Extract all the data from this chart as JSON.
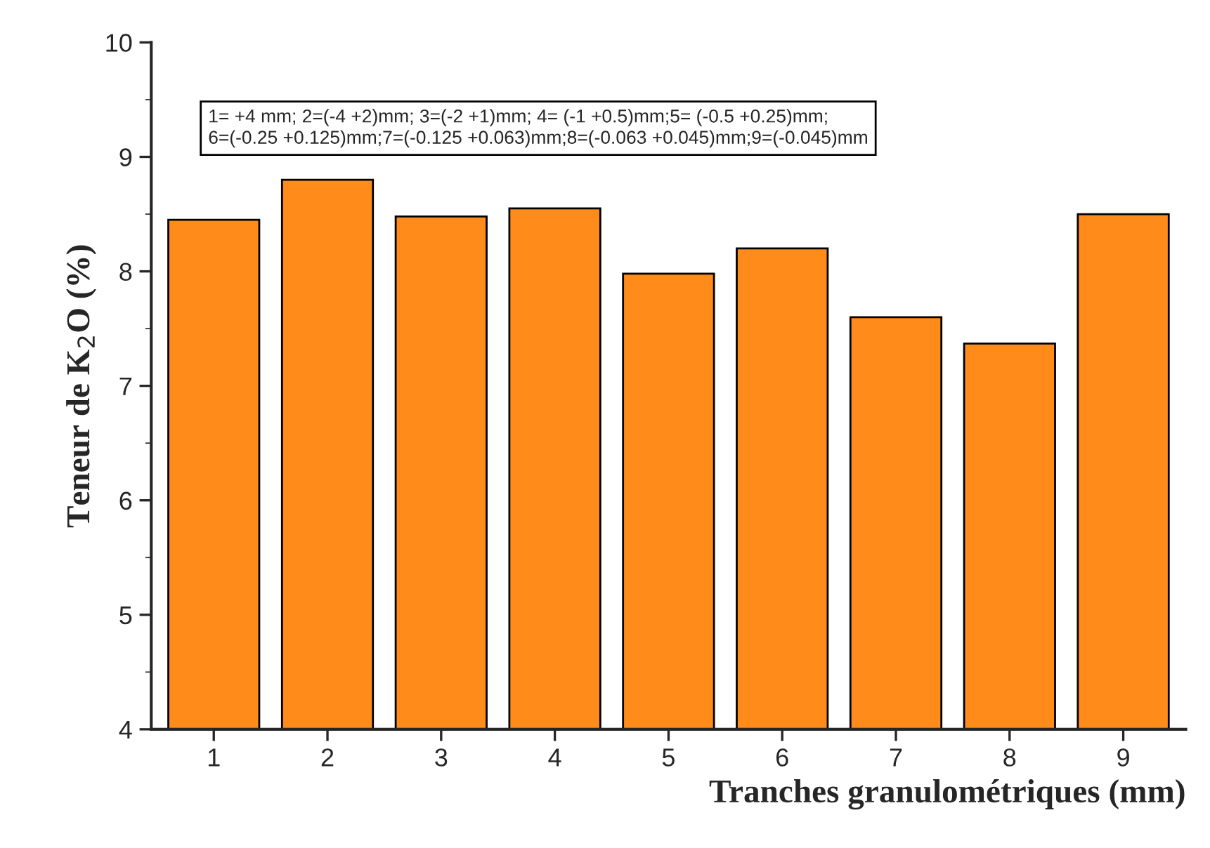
{
  "chart_data": {
    "type": "bar",
    "xlabel": "Tranches granulométriques (mm)",
    "ylabel": "Teneur de K$_{2}$O (%)",
    "categories": [
      "1",
      "2",
      "3",
      "4",
      "5",
      "6",
      "7",
      "8",
      "9"
    ],
    "values": [
      8.45,
      8.8,
      8.48,
      8.55,
      7.98,
      8.2,
      7.6,
      7.37,
      8.5
    ],
    "color": "#ff8c1a",
    "ylim": [
      4,
      10
    ],
    "yticks": [
      4,
      5,
      6,
      7,
      8,
      9,
      10
    ],
    "annotations": [
      "1= +4 mm; 2=(-4 +2)mm; 3=(-2 +1)mm; 4= (-1 +0.5)mm;5= (-0.5 +0.25)mm;\n6=(-0.25 +0.125)mm;7=(-0.125 +0.063)mm;8=(-0.063 +0.045)mm;9=(-0.045)mm"
    ],
    "grid": false
  }
}
